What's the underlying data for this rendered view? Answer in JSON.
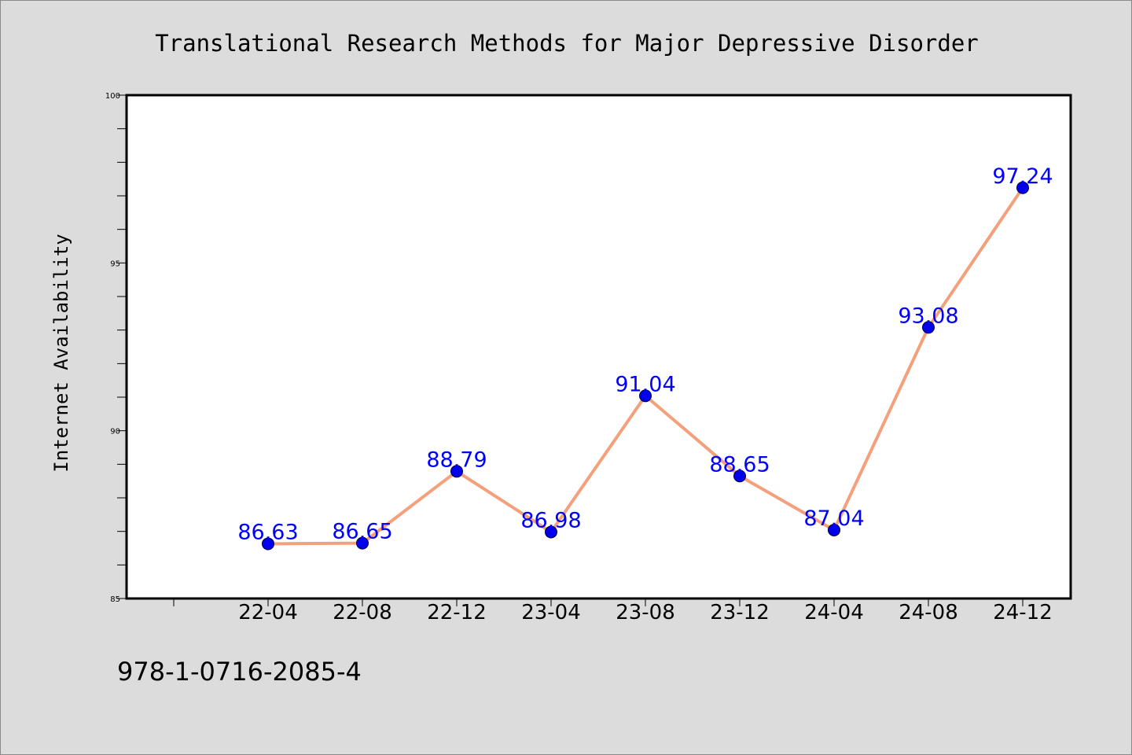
{
  "chart_data": {
    "type": "line",
    "title": "Translational Research Methods for Major Depressive Disorder",
    "xlabel": "",
    "ylabel": "Internet Availability",
    "categories": [
      "22-04",
      "22-08",
      "22-12",
      "23-04",
      "23-08",
      "23-12",
      "24-04",
      "24-08",
      "24-12"
    ],
    "values": [
      86.63,
      86.65,
      88.79,
      86.98,
      91.04,
      88.65,
      87.04,
      93.08,
      97.24
    ],
    "data_labels": [
      "86.63",
      "86.65",
      "88.79",
      "86.98",
      "91.04",
      "88.65",
      "87.04",
      "93.08",
      "97.24"
    ],
    "ylim": [
      85,
      100
    ],
    "y_ticks": [
      85,
      90,
      95,
      100
    ],
    "grid": false,
    "colors": {
      "line": "#f4a07c",
      "marker": "#0000ee",
      "label": "#0000ff",
      "background": "#dcdcdc",
      "plot_background": "#ffffff"
    }
  },
  "footer": {
    "isbn": "978-1-0716-2085-4"
  }
}
